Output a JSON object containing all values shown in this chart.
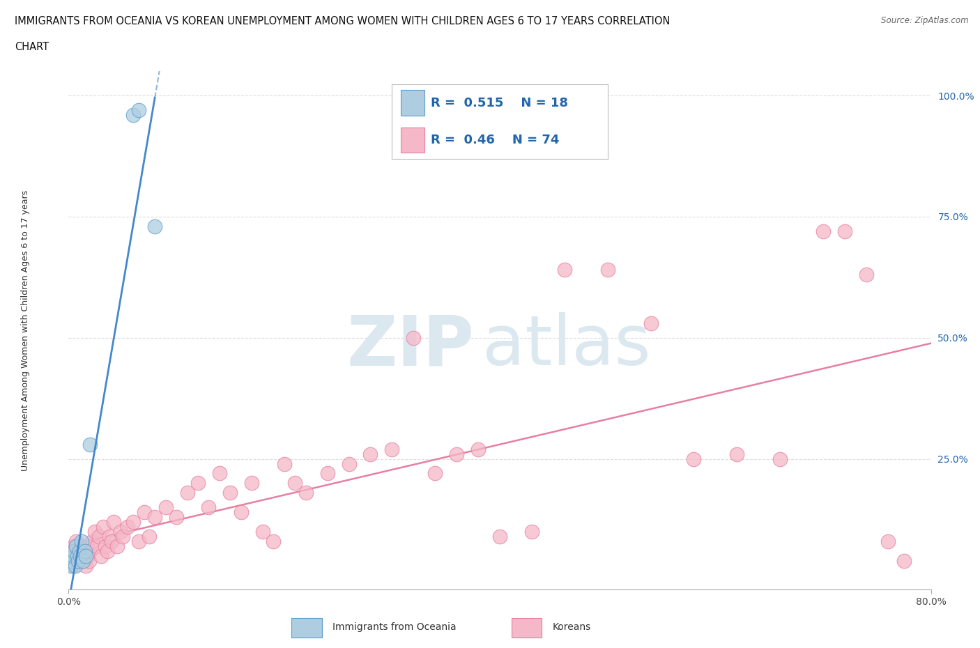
{
  "title_line1": "IMMIGRANTS FROM OCEANIA VS KOREAN UNEMPLOYMENT AMONG WOMEN WITH CHILDREN AGES 6 TO 17 YEARS CORRELATION",
  "title_line2": "CHART",
  "source_text": "Source: ZipAtlas.com",
  "ylabel": "Unemployment Among Women with Children Ages 6 to 17 years",
  "x_min": 0.0,
  "x_max": 0.8,
  "y_min": -0.02,
  "y_max": 1.05,
  "x_ticks": [
    0.0,
    0.8
  ],
  "x_tick_labels": [
    "0.0%",
    "80.0%"
  ],
  "y_ticks": [
    0.0,
    0.25,
    0.5,
    0.75,
    1.0
  ],
  "y_tick_labels": [
    "",
    "25.0%",
    "50.0%",
    "75.0%",
    "100.0%"
  ],
  "oceania_color": "#aecde0",
  "oceania_edge_color": "#5b9ec9",
  "korean_color": "#f4b8c8",
  "korean_edge_color": "#e87fa0",
  "oceania_R": 0.515,
  "oceania_N": 18,
  "korean_R": 0.46,
  "korean_N": 74,
  "legend_label_oceania": "Immigrants from Oceania",
  "legend_label_korean": "Koreans",
  "legend_R_color": "#2166ac",
  "watermark_zip": "ZIP",
  "watermark_atlas": "atlas",
  "watermark_color": "#dce8f0",
  "background_color": "#ffffff",
  "grid_color": "#dddddd",
  "oceania_line_color": "#4488cc",
  "korean_line_color": "#e87fa0",
  "oceania_scatter_x": [
    0.002,
    0.003,
    0.004,
    0.005,
    0.006,
    0.007,
    0.008,
    0.009,
    0.01,
    0.011,
    0.012,
    0.013,
    0.015,
    0.016,
    0.02,
    0.06,
    0.065,
    0.08
  ],
  "oceania_scatter_y": [
    0.03,
    0.04,
    0.05,
    0.06,
    0.03,
    0.07,
    0.05,
    0.04,
    0.06,
    0.05,
    0.08,
    0.04,
    0.06,
    0.05,
    0.28,
    0.96,
    0.97,
    0.73
  ],
  "korean_scatter_x": [
    0.002,
    0.003,
    0.004,
    0.005,
    0.006,
    0.007,
    0.008,
    0.009,
    0.01,
    0.011,
    0.012,
    0.013,
    0.014,
    0.015,
    0.016,
    0.017,
    0.018,
    0.019,
    0.02,
    0.022,
    0.024,
    0.026,
    0.028,
    0.03,
    0.032,
    0.034,
    0.036,
    0.038,
    0.04,
    0.042,
    0.045,
    0.048,
    0.05,
    0.055,
    0.06,
    0.065,
    0.07,
    0.075,
    0.08,
    0.09,
    0.1,
    0.11,
    0.12,
    0.13,
    0.14,
    0.15,
    0.16,
    0.17,
    0.18,
    0.19,
    0.2,
    0.21,
    0.22,
    0.24,
    0.26,
    0.28,
    0.3,
    0.32,
    0.34,
    0.36,
    0.38,
    0.4,
    0.43,
    0.46,
    0.5,
    0.54,
    0.58,
    0.62,
    0.66,
    0.7,
    0.72,
    0.74,
    0.76,
    0.775
  ],
  "korean_scatter_y": [
    0.04,
    0.06,
    0.03,
    0.07,
    0.05,
    0.08,
    0.04,
    0.06,
    0.05,
    0.04,
    0.07,
    0.05,
    0.04,
    0.06,
    0.03,
    0.07,
    0.05,
    0.04,
    0.06,
    0.08,
    0.1,
    0.07,
    0.09,
    0.05,
    0.11,
    0.07,
    0.06,
    0.09,
    0.08,
    0.12,
    0.07,
    0.1,
    0.09,
    0.11,
    0.12,
    0.08,
    0.14,
    0.09,
    0.13,
    0.15,
    0.13,
    0.18,
    0.2,
    0.15,
    0.22,
    0.18,
    0.14,
    0.2,
    0.1,
    0.08,
    0.24,
    0.2,
    0.18,
    0.22,
    0.24,
    0.26,
    0.27,
    0.5,
    0.22,
    0.26,
    0.27,
    0.09,
    0.1,
    0.64,
    0.64,
    0.53,
    0.25,
    0.26,
    0.25,
    0.72,
    0.72,
    0.63,
    0.08,
    0.04
  ]
}
